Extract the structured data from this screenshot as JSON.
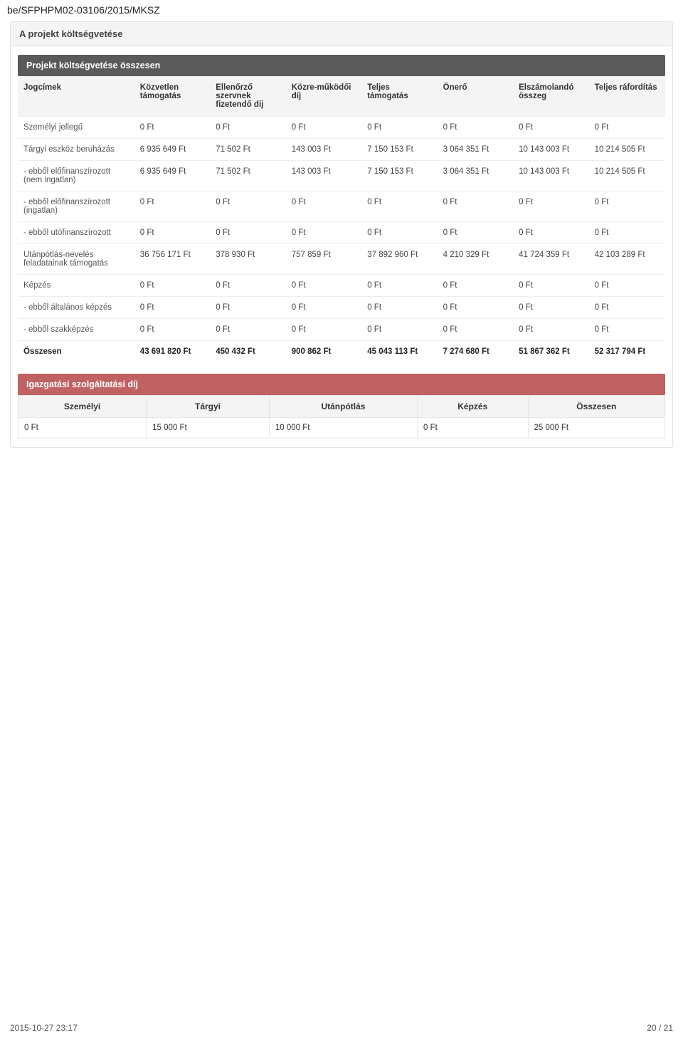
{
  "doc_id": "be/SFPHPM02-03106/2015/MKSZ",
  "section_title": "A projekt költségvetése",
  "subheader": "Projekt költségvetése összesen",
  "budget_table": {
    "columns": [
      "Jogcímek",
      "Közvetlen támogatás",
      "Ellenőrző szervnek fizetendő díj",
      "Közre-működői díj",
      "Teljes támogatás",
      "Önerő",
      "Elszámolandó összeg",
      "Teljes ráfordítás"
    ],
    "col_widths": [
      "18%",
      "11.7%",
      "11.7%",
      "11.7%",
      "11.7%",
      "11.7%",
      "11.7%",
      "11.8%"
    ],
    "rows": [
      {
        "label": "Személyi jellegű",
        "c": [
          "0 Ft",
          "0 Ft",
          "0 Ft",
          "0 Ft",
          "0 Ft",
          "0 Ft",
          "0 Ft"
        ]
      },
      {
        "label": "Tárgyi eszköz beruházás",
        "c": [
          "6 935 649 Ft",
          "71 502 Ft",
          "143 003 Ft",
          "7 150 153 Ft",
          "3 064 351 Ft",
          "10 143 003 Ft",
          "10 214 505 Ft"
        ]
      },
      {
        "label": "- ebből előfinanszírozott (nem ingatlan)",
        "c": [
          "6 935 649 Ft",
          "71 502 Ft",
          "143 003 Ft",
          "7 150 153 Ft",
          "3 064 351 Ft",
          "10 143 003 Ft",
          "10 214 505 Ft"
        ]
      },
      {
        "label": "- ebből előfinanszírozott (ingatlan)",
        "c": [
          "0 Ft",
          "0 Ft",
          "0 Ft",
          "0 Ft",
          "0 Ft",
          "0 Ft",
          "0 Ft"
        ]
      },
      {
        "label": "- ebből utófinanszírozott",
        "c": [
          "0 Ft",
          "0 Ft",
          "0 Ft",
          "0 Ft",
          "0 Ft",
          "0 Ft",
          "0 Ft"
        ]
      },
      {
        "label": "Utánpótlás-nevelés feladatainak támogatás",
        "c": [
          "36 756 171 Ft",
          "378 930 Ft",
          "757 859 Ft",
          "37 892 960 Ft",
          "4 210 329 Ft",
          "41 724 359 Ft",
          "42 103 289 Ft"
        ]
      },
      {
        "label": "Képzés",
        "c": [
          "0 Ft",
          "0 Ft",
          "0 Ft",
          "0 Ft",
          "0 Ft",
          "0 Ft",
          "0 Ft"
        ]
      },
      {
        "label": "- ebből általános képzés",
        "c": [
          "0 Ft",
          "0 Ft",
          "0 Ft",
          "0 Ft",
          "0 Ft",
          "0 Ft",
          "0 Ft"
        ]
      },
      {
        "label": "- ebből szakképzés",
        "c": [
          "0 Ft",
          "0 Ft",
          "0 Ft",
          "0 Ft",
          "0 Ft",
          "0 Ft",
          "0 Ft"
        ]
      }
    ],
    "total": {
      "label": "Összesen",
      "c": [
        "43 691 820 Ft",
        "450 432 Ft",
        "900 862 Ft",
        "45 043 113 Ft",
        "7 274 680 Ft",
        "51 867 362 Ft",
        "52 317 794 Ft"
      ]
    }
  },
  "fees_header": "Igazgatási szolgáltatási díj",
  "fees_table": {
    "columns": [
      "Személyi",
      "Tárgyi",
      "Utánpótlás",
      "Képzés",
      "Összesen"
    ],
    "row": [
      "0 Ft",
      "15 000 Ft",
      "10 000 Ft",
      "0 Ft",
      "25 000 Ft"
    ]
  },
  "footer": {
    "left": "2015-10-27 23:17",
    "right": "20 / 21"
  }
}
